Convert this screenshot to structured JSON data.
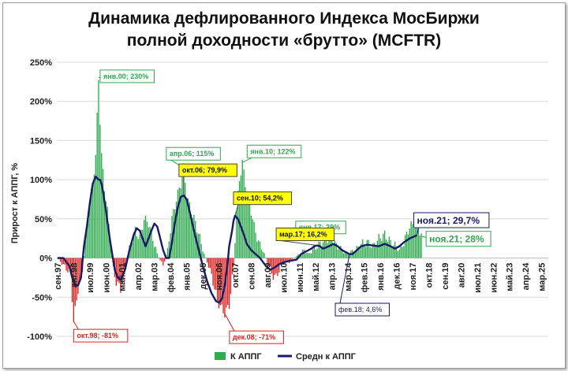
{
  "chart_data": {
    "type": "bar",
    "title_line1": "Динамика дефлированного Индекса МосБиржи",
    "title_line2": "полной доходности «брутто» (MCFTR)",
    "xlabel": "",
    "ylabel": "Прирост к АППГ, %",
    "ylim": [
      -100,
      250
    ],
    "y_ticks": [
      "250%",
      "200%",
      "150%",
      "100%",
      "50%",
      "0%",
      "-50%",
      "-100%"
    ],
    "y_tick_values": [
      250,
      200,
      150,
      100,
      50,
      0,
      -50,
      -100
    ],
    "grid": "horizontal",
    "legend_position": "bottom",
    "x_ticks": [
      "сен.97",
      "авг.98",
      "июл.99",
      "июн.00",
      "май.01",
      "апр.02",
      "мар.03",
      "фев.04",
      "янв.05",
      "дек.05",
      "ноя.06",
      "окт.07",
      "сен.08",
      "авг.09",
      "июл.10",
      "июн.11",
      "май.12",
      "апр.13",
      "мар.14",
      "фев.15",
      "янв.16",
      "дек.16",
      "ноя.17",
      "окт.18",
      "сен.19",
      "авг.20",
      "июл.21",
      "июн.22",
      "май.23",
      "апр.24",
      "мар.25"
    ],
    "series": [
      {
        "name": "К АППГ",
        "kind": "bar",
        "color": "#2eaa4f",
        "negative_color": "#e02020",
        "anchors": [
          [
            0,
            0
          ],
          [
            9,
            -20
          ],
          [
            11,
            -81
          ],
          [
            14,
            -40
          ],
          [
            17,
            -15
          ],
          [
            20,
            40
          ],
          [
            22,
            70
          ],
          [
            24,
            95
          ],
          [
            26,
            130
          ],
          [
            28,
            230
          ],
          [
            29,
            175
          ],
          [
            30,
            130
          ],
          [
            32,
            90
          ],
          [
            34,
            60
          ],
          [
            36,
            25
          ],
          [
            38,
            -15
          ],
          [
            40,
            -30
          ],
          [
            43,
            -40
          ],
          [
            46,
            -10
          ],
          [
            50,
            20
          ],
          [
            53,
            35
          ],
          [
            56,
            25
          ],
          [
            59,
            50
          ],
          [
            62,
            45
          ],
          [
            65,
            25
          ],
          [
            68,
            5
          ],
          [
            72,
            -10
          ],
          [
            75,
            10
          ],
          [
            78,
            50
          ],
          [
            81,
            75
          ],
          [
            84,
            95
          ],
          [
            86,
            115
          ],
          [
            88,
            80
          ],
          [
            91,
            60
          ],
          [
            94,
            45
          ],
          [
            97,
            25
          ],
          [
            100,
            5
          ],
          [
            103,
            -10
          ],
          [
            106,
            -30
          ],
          [
            109,
            -55
          ],
          [
            112,
            -65
          ],
          [
            114,
            -71
          ],
          [
            117,
            -60
          ],
          [
            120,
            -10
          ],
          [
            122,
            60
          ],
          [
            124,
            100
          ],
          [
            126,
            122
          ],
          [
            128,
            95
          ],
          [
            131,
            70
          ],
          [
            134,
            40
          ],
          [
            137,
            20
          ],
          [
            140,
            10
          ],
          [
            143,
            -5
          ],
          [
            146,
            -20
          ],
          [
            149,
            -25
          ],
          [
            152,
            -10
          ],
          [
            155,
            -5
          ],
          [
            158,
            -5
          ],
          [
            161,
            0
          ],
          [
            165,
            5
          ],
          [
            168,
            10
          ],
          [
            171,
            5
          ],
          [
            174,
            10
          ],
          [
            177,
            15
          ],
          [
            180,
            20
          ],
          [
            184,
            25
          ],
          [
            186,
            29
          ],
          [
            189,
            18
          ],
          [
            193,
            12
          ],
          [
            197,
            5
          ],
          [
            200,
            8
          ],
          [
            203,
            10
          ],
          [
            207,
            18
          ],
          [
            211,
            20
          ],
          [
            215,
            15
          ],
          [
            219,
            25
          ],
          [
            223,
            30
          ],
          [
            227,
            20
          ],
          [
            231,
            15
          ],
          [
            233,
            10
          ],
          [
            236,
            20
          ],
          [
            240,
            40
          ],
          [
            244,
            45
          ],
          [
            246,
            40
          ],
          [
            248,
            28
          ]
        ]
      },
      {
        "name": "Средн к АППГ",
        "kind": "line",
        "color": "#1a1a66",
        "anchors": [
          [
            0,
            0
          ],
          [
            4,
            0
          ],
          [
            8,
            -10
          ],
          [
            10,
            -25
          ],
          [
            12,
            -35
          ],
          [
            14,
            -35
          ],
          [
            16,
            -25
          ],
          [
            18,
            15
          ],
          [
            20,
            40
          ],
          [
            22,
            70
          ],
          [
            24,
            95
          ],
          [
            26,
            104
          ],
          [
            28,
            100
          ],
          [
            29,
            100
          ],
          [
            30,
            95
          ],
          [
            31,
            85
          ],
          [
            33,
            60
          ],
          [
            36,
            20
          ],
          [
            39,
            -15
          ],
          [
            41,
            -25
          ],
          [
            43,
            -28
          ],
          [
            46,
            -15
          ],
          [
            49,
            10
          ],
          [
            52,
            30
          ],
          [
            54,
            38
          ],
          [
            56,
            35
          ],
          [
            58,
            25
          ],
          [
            60,
            15
          ],
          [
            62,
            25
          ],
          [
            64,
            35
          ],
          [
            66,
            44
          ],
          [
            68,
            40
          ],
          [
            70,
            25
          ],
          [
            72,
            10
          ],
          [
            74,
            0
          ],
          [
            76,
            0
          ],
          [
            78,
            20
          ],
          [
            80,
            45
          ],
          [
            82,
            65
          ],
          [
            84,
            78
          ],
          [
            86,
            80
          ],
          [
            88,
            75
          ],
          [
            90,
            60
          ],
          [
            93,
            35
          ],
          [
            96,
            12
          ],
          [
            99,
            -10
          ],
          [
            102,
            -30
          ],
          [
            105,
            -45
          ],
          [
            108,
            -55
          ],
          [
            110,
            -57
          ],
          [
            112,
            -52
          ],
          [
            114,
            -35
          ],
          [
            116,
            -5
          ],
          [
            117,
            15
          ],
          [
            119,
            35
          ],
          [
            120,
            48
          ],
          [
            121,
            54
          ],
          [
            123,
            50
          ],
          [
            125,
            40
          ],
          [
            127,
            30
          ],
          [
            129,
            18
          ],
          [
            132,
            10
          ],
          [
            135,
            5
          ],
          [
            138,
            0
          ],
          [
            140,
            -5
          ],
          [
            142,
            -10
          ],
          [
            145,
            -15
          ],
          [
            148,
            -12
          ],
          [
            151,
            -8
          ],
          [
            155,
            -5
          ],
          [
            160,
            -3
          ],
          [
            163,
            -2
          ],
          [
            166,
            5
          ],
          [
            169,
            8
          ],
          [
            171,
            10
          ],
          [
            173,
            12
          ],
          [
            175,
            15
          ],
          [
            177,
            16
          ],
          [
            179,
            15
          ],
          [
            181,
            12
          ],
          [
            185,
            15
          ],
          [
            188,
            18
          ],
          [
            191,
            15
          ],
          [
            194,
            10
          ],
          [
            197,
            7
          ],
          [
            199,
            5
          ],
          [
            201,
            5
          ],
          [
            204,
            10
          ],
          [
            207,
            15
          ],
          [
            211,
            17
          ],
          [
            215,
            16
          ],
          [
            219,
            15
          ],
          [
            223,
            18
          ],
          [
            227,
            15
          ],
          [
            230,
            12
          ],
          [
            233,
            15
          ],
          [
            236,
            20
          ],
          [
            240,
            25
          ],
          [
            245,
            29
          ]
        ]
      }
    ],
    "legend": [
      "К АППГ",
      "Средн к АППГ"
    ],
    "annotations": [
      {
        "text": "янв.00; 230%",
        "kind": "green",
        "at_index": 28,
        "at_value": 230
      },
      {
        "text": "апр.06; 115%",
        "kind": "green",
        "at_index": 86,
        "at_value": 115
      },
      {
        "text": "янв.10; 122%",
        "kind": "green",
        "at_index": 126,
        "at_value": 122
      },
      {
        "text": "янв.17; 29%",
        "kind": "green",
        "at_index": 186,
        "at_value": 29
      },
      {
        "text": "ноя.21; 28%",
        "kind": "green-large",
        "at_index": 248,
        "at_value": 28
      },
      {
        "text": "окт.06; 79,9%",
        "kind": "yellow",
        "at_index": 86,
        "at_value": 79.9
      },
      {
        "text": "сен.10; 54,2%",
        "kind": "yellow",
        "at_index": 121,
        "at_value": 54.2
      },
      {
        "text": "мар.17; 16,2%",
        "kind": "yellow",
        "at_index": 177,
        "at_value": 16.2
      },
      {
        "text": "окт.98; -81%",
        "kind": "red",
        "at_index": 11,
        "at_value": -81
      },
      {
        "text": "дек.08; -71%",
        "kind": "red",
        "at_index": 114,
        "at_value": -71
      },
      {
        "text": "фев.18; 4,6%",
        "kind": "navy",
        "at_index": 199,
        "at_value": 4.6
      },
      {
        "text": "ноя.21; 29,7%",
        "kind": "navy-large",
        "at_index": 245,
        "at_value": 29.7
      }
    ]
  }
}
